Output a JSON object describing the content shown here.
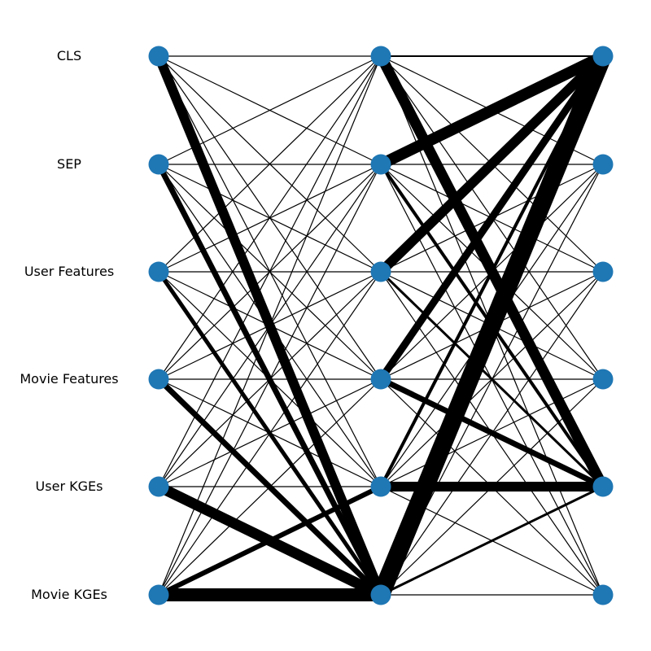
{
  "colors": {
    "node": "#1f77b4",
    "edge": "#000000",
    "background": "#ffffff"
  },
  "rows": [
    {
      "label": "CLS"
    },
    {
      "label": "SEP"
    },
    {
      "label": "User Features"
    },
    {
      "label": "Movie Features"
    },
    {
      "label": "User KGEs"
    },
    {
      "label": "Movie KGEs"
    }
  ],
  "columns": 3,
  "edges": [
    {
      "from": [
        0,
        0
      ],
      "to": [
        1,
        5
      ],
      "weight": 12
    },
    {
      "from": [
        0,
        1
      ],
      "to": [
        1,
        5
      ],
      "weight": 7
    },
    {
      "from": [
        0,
        2
      ],
      "to": [
        1,
        5
      ],
      "weight": 5
    },
    {
      "from": [
        0,
        3
      ],
      "to": [
        1,
        5
      ],
      "weight": 7
    },
    {
      "from": [
        0,
        4
      ],
      "to": [
        1,
        5
      ],
      "weight": 13
    },
    {
      "from": [
        0,
        5
      ],
      "to": [
        1,
        5
      ],
      "weight": 16
    },
    {
      "from": [
        0,
        5
      ],
      "to": [
        1,
        4
      ],
      "weight": 6
    },
    {
      "from": [
        1,
        0
      ],
      "to": [
        2,
        4
      ],
      "weight": 13
    },
    {
      "from": [
        1,
        1
      ],
      "to": [
        2,
        0
      ],
      "weight": 14
    },
    {
      "from": [
        1,
        2
      ],
      "to": [
        2,
        0
      ],
      "weight": 12
    },
    {
      "from": [
        1,
        3
      ],
      "to": [
        2,
        0
      ],
      "weight": 9
    },
    {
      "from": [
        1,
        4
      ],
      "to": [
        2,
        0
      ],
      "weight": 4
    },
    {
      "from": [
        1,
        5
      ],
      "to": [
        2,
        0
      ],
      "weight": 22
    },
    {
      "from": [
        1,
        3
      ],
      "to": [
        2,
        4
      ],
      "weight": 7
    },
    {
      "from": [
        1,
        4
      ],
      "to": [
        2,
        4
      ],
      "weight": 12
    },
    {
      "from": [
        1,
        5
      ],
      "to": [
        2,
        4
      ],
      "weight": 3
    },
    {
      "from": [
        1,
        1
      ],
      "to": [
        2,
        4
      ],
      "weight": 4
    },
    {
      "from": [
        1,
        2
      ],
      "to": [
        2,
        4
      ],
      "weight": 3
    },
    {
      "from": [
        1,
        0
      ],
      "to": [
        2,
        0
      ],
      "weight": 2
    }
  ]
}
